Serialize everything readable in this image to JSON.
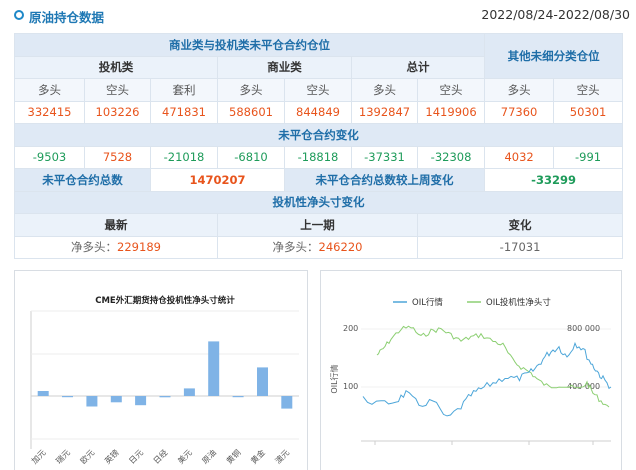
{
  "header": {
    "title": "原油持仓数据",
    "date_range": "2022/08/24-2022/08/30"
  },
  "table": {
    "group_title": "商业类与投机类未平仓合约仓位",
    "other_title": "其他未细分类仓位",
    "sub_groups": [
      "投机类",
      "商业类",
      "总计"
    ],
    "columns": [
      "多头",
      "空头",
      "套利",
      "多头",
      "空头",
      "多头",
      "空头",
      "多头",
      "空头"
    ],
    "positions": [
      "332415",
      "103226",
      "471831",
      "588601",
      "844849",
      "1392847",
      "1419906",
      "77360",
      "50301"
    ],
    "change_title": "未平仓合约变化",
    "changes": [
      "-9503",
      "7528",
      "-21018",
      "-6810",
      "-18818",
      "-37331",
      "-32308",
      "4032",
      "-991"
    ],
    "total_label": "未平仓合约总数",
    "total_value": "1470207",
    "weekly_change_label": "未平仓合约总数较上周变化",
    "weekly_change_value": "-33299",
    "net_title": "投机性净头寸变化",
    "net_headers": [
      "最新",
      "上一期",
      "变化"
    ],
    "net_prefix": "净多头：",
    "net_latest": "229189",
    "net_previous": "246220",
    "net_change": "-17031"
  },
  "chart_data": [
    {
      "type": "bar",
      "title": "CME外汇期货持仓投机性净头寸统计",
      "categories": [
        "加元",
        "瑞元",
        "欧元",
        "英镑",
        "日元",
        "日经",
        "美元",
        "原油",
        "黄铜",
        "黄金",
        "澳元"
      ],
      "values": [
        12,
        -2,
        -25,
        -15,
        -22,
        -3,
        18,
        130,
        -2,
        68,
        -30
      ],
      "color": "#7fb3e6"
    },
    {
      "type": "line",
      "series": [
        {
          "name": "OIL行情",
          "color": "#4da6d9",
          "axis": "left"
        },
        {
          "name": "OIL投机性净头寸",
          "color": "#8ccf72",
          "axis": "right"
        }
      ],
      "ylabel": "OIL行情",
      "left_ticks": [
        "200",
        "100"
      ],
      "right_ticks": [
        "800 000",
        "400 000"
      ]
    }
  ]
}
